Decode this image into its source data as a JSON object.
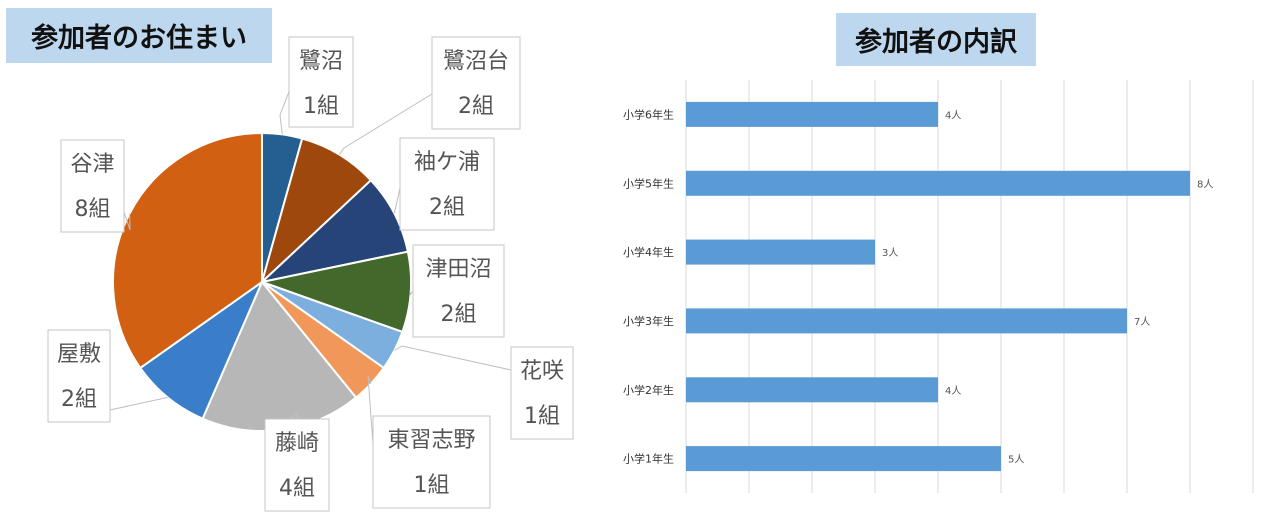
{
  "chart_data": [
    {
      "type": "pie",
      "title": "参加者のお住まい",
      "slices": [
        {
          "name": "鷺沼",
          "value": 1,
          "label": "1組",
          "color": "#255e91"
        },
        {
          "name": "鷺沼台",
          "value": 2,
          "label": "2組",
          "color": "#9e480e"
        },
        {
          "name": "袖ケ浦",
          "value": 2,
          "label": "2組",
          "color": "#264478"
        },
        {
          "name": "津田沼",
          "value": 2,
          "label": "2組",
          "color": "#43682b"
        },
        {
          "name": "花咲",
          "value": 1,
          "label": "1組",
          "color": "#7cafdd"
        },
        {
          "name": "東習志野",
          "value": 1,
          "label": "1組",
          "color": "#f1975a"
        },
        {
          "name": "藤崎",
          "value": 4,
          "label": "4組",
          "color": "#b7b7b7"
        },
        {
          "name": "屋敷",
          "value": 2,
          "label": "2組",
          "color": "#3a7dc9"
        },
        {
          "name": "谷津",
          "value": 8,
          "label": "8組",
          "color": "#d26012"
        }
      ]
    },
    {
      "type": "bar",
      "orientation": "horizontal",
      "title": "参加者の内訳",
      "categories": [
        "小学6年生",
        "小学5年生",
        "小学4年生",
        "小学3年生",
        "小学2年生",
        "小学1年生"
      ],
      "values": [
        4,
        8,
        3,
        7,
        4,
        5
      ],
      "value_labels": [
        "4人",
        "8人",
        "3人",
        "7人",
        "4人",
        "5人"
      ],
      "xlim": [
        0,
        9
      ],
      "grid": true,
      "bar_color": "#5b9bd5"
    }
  ]
}
